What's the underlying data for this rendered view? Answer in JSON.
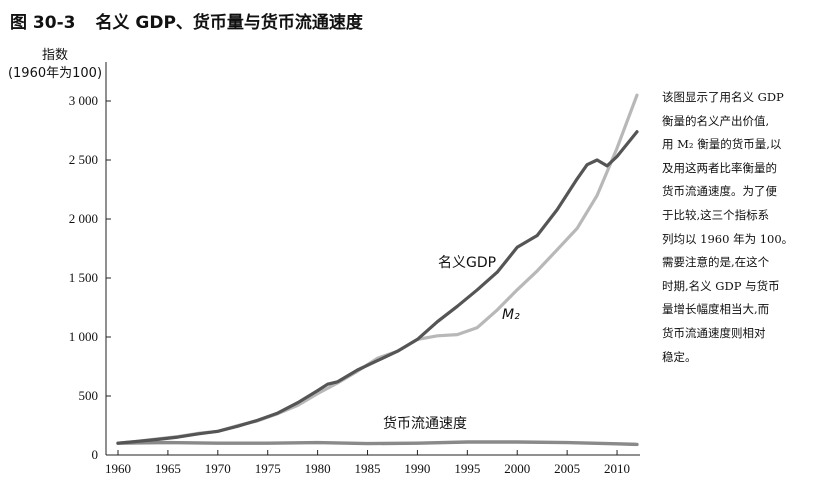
{
  "figure": {
    "number": "图 30-3",
    "title": "名义 GDP、货币量与货币流通速度"
  },
  "caption": "该图显示了用名义 GDP\n衡量的名义产出价值,\n用 M₂ 衡量的货币量,以\n及用这两者比率衡量的\n货币流通速度。为了便\n于比较,这三个指标系\n列均以 1960 年为 100。\n需要注意的是,在这个\n时期,名义 GDP 与货币\n量增长幅度相当大,而\n货币流通速度则相对\n稳定。",
  "chart_data": {
    "type": "line",
    "ylabel": "指数",
    "ylabel_unit": "(1960年为100)",
    "xlim": [
      1960,
      2012
    ],
    "ylim": [
      0,
      3000
    ],
    "x_ticks": [
      1960,
      1965,
      1970,
      1975,
      1980,
      1985,
      1990,
      1995,
      2000,
      2005,
      2010
    ],
    "x_tick_labels": [
      "1960",
      "1965",
      "1970",
      "1975",
      "1980",
      "1985",
      "1990",
      "1995",
      "2000",
      "2005",
      "2010"
    ],
    "y_ticks": [
      500,
      1000,
      1500,
      2000,
      2500,
      3000
    ],
    "y_tick_labels": [
      "500",
      "1 000",
      "1 500",
      "2 000",
      "2 500",
      "3 000"
    ],
    "grid": false,
    "legend": "none",
    "series": [
      {
        "name": "名义GDP",
        "color": "#555555",
        "x": [
          1960,
          1962,
          1964,
          1966,
          1968,
          1970,
          1972,
          1974,
          1976,
          1978,
          1980,
          1981,
          1982,
          1984,
          1986,
          1988,
          1990,
          1992,
          1994,
          1996,
          1998,
          2000,
          2002,
          2004,
          2006,
          2007,
          2008,
          2009,
          2010,
          2012
        ],
        "values": [
          100,
          116,
          132,
          152,
          179,
          201,
          244,
          294,
          355,
          443,
          546,
          600,
          620,
          720,
          800,
          880,
          980,
          1130,
          1260,
          1400,
          1550,
          1760,
          1860,
          2080,
          2340,
          2460,
          2500,
          2450,
          2530,
          2740
        ]
      },
      {
        "name": "M₂",
        "color": "#b8b8b8",
        "x": [
          1960,
          1962,
          1964,
          1966,
          1968,
          1970,
          1972,
          1974,
          1976,
          1978,
          1980,
          1982,
          1984,
          1986,
          1988,
          1990,
          1992,
          1994,
          1996,
          1998,
          2000,
          2002,
          2004,
          2006,
          2008,
          2009,
          2010,
          2012
        ],
        "values": [
          100,
          117,
          137,
          156,
          183,
          200,
          250,
          290,
          350,
          420,
          520,
          610,
          710,
          820,
          880,
          980,
          1010,
          1020,
          1080,
          1230,
          1400,
          1560,
          1740,
          1920,
          2200,
          2400,
          2600,
          3050
        ]
      },
      {
        "name": "货币流通速度",
        "color": "#8a8a8a",
        "x": [
          1960,
          1965,
          1970,
          1975,
          1980,
          1985,
          1990,
          1995,
          2000,
          2005,
          2010,
          2012
        ],
        "values": [
          100,
          105,
          100,
          100,
          105,
          97,
          100,
          110,
          110,
          105,
          95,
          90
        ]
      }
    ]
  }
}
